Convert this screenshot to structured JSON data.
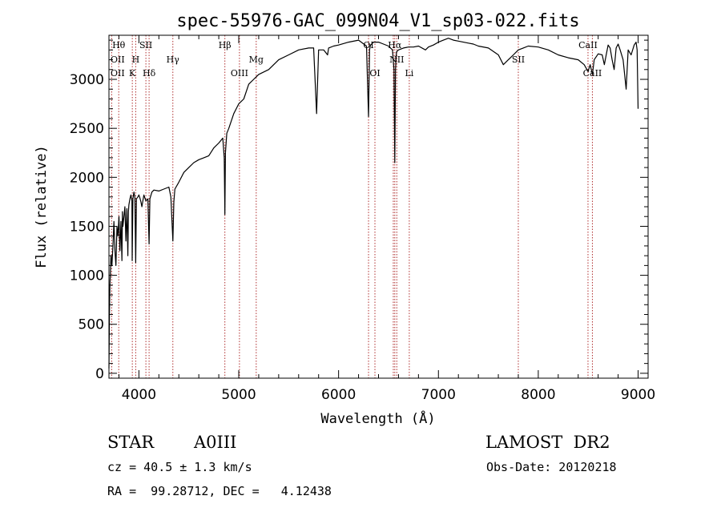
{
  "chart_data": {
    "type": "line",
    "title": "spec-55976-GAC_099N04_V1_sp03-022.fits",
    "xlabel": "Wavelength (Å)",
    "ylabel": "Flux (relative)",
    "xlim": [
      3700,
      9100
    ],
    "ylim": [
      -50,
      3450
    ],
    "xticks": [
      4000,
      5000,
      6000,
      7000,
      8000,
      9000
    ],
    "yticks": [
      0,
      500,
      1000,
      1500,
      2000,
      2500,
      3000
    ],
    "grid": false,
    "series": [
      {
        "x": [
          3700,
          3705,
          3710,
          3720,
          3730,
          3740,
          3750,
          3760,
          3770,
          3780,
          3790,
          3800,
          3810,
          3820,
          3830,
          3835,
          3840,
          3850,
          3860,
          3870,
          3880,
          3889,
          3895,
          3900,
          3910,
          3920,
          3930,
          3933,
          3940,
          3950,
          3960,
          3968,
          3975,
          3990,
          4000,
          4010,
          4020,
          4030,
          4050,
          4070,
          4090,
          4102,
          4110,
          4130,
          4150,
          4200,
          4250,
          4300,
          4320,
          4340,
          4350,
          4360,
          4400,
          4450,
          4500,
          4550,
          4600,
          4650,
          4700,
          4750,
          4800,
          4840,
          4855,
          4861,
          4867,
          4880,
          4900,
          4950,
          5000,
          5050,
          5100,
          5150,
          5200,
          5300,
          5400,
          5500,
          5600,
          5700,
          5750,
          5780,
          5800,
          5850,
          5890,
          5900,
          5950,
          6000,
          6100,
          6200,
          6280,
          6300,
          6310,
          6320,
          6350,
          6400,
          6450,
          6500,
          6540,
          6555,
          6563,
          6570,
          6580,
          6600,
          6650,
          6700,
          6750,
          6800,
          6870,
          6900,
          6950,
          7000,
          7050,
          7100,
          7150,
          7200,
          7250,
          7300,
          7350,
          7400,
          7500,
          7600,
          7650,
          7700,
          7750,
          7800,
          7850,
          7900,
          8000,
          8100,
          8200,
          8300,
          8400,
          8460,
          8498,
          8520,
          8542,
          8560,
          8600,
          8640,
          8662,
          8680,
          8700,
          8720,
          8740,
          8760,
          8780,
          8800,
          8820,
          8850,
          8880,
          8900,
          8930,
          8960,
          8980,
          8990,
          9000
        ],
        "values": [
          50,
          600,
          900,
          1200,
          1100,
          1300,
          1550,
          1250,
          1100,
          1500,
          1400,
          1600,
          1250,
          1550,
          1150,
          1650,
          1500,
          1600,
          1700,
          1350,
          1680,
          1200,
          1650,
          1720,
          1780,
          1820,
          1760,
          1150,
          1780,
          1850,
          1790,
          1130,
          1780,
          1800,
          1820,
          1790,
          1750,
          1700,
          1820,
          1760,
          1780,
          1320,
          1780,
          1850,
          1870,
          1860,
          1880,
          1900,
          1800,
          1350,
          1750,
          1880,
          1950,
          2050,
          2100,
          2150,
          2180,
          2200,
          2220,
          2300,
          2350,
          2400,
          2200,
          1620,
          2250,
          2450,
          2500,
          2650,
          2750,
          2800,
          2950,
          3000,
          3050,
          3100,
          3200,
          3250,
          3300,
          3320,
          3320,
          2650,
          3300,
          3300,
          3250,
          3320,
          3340,
          3350,
          3380,
          3400,
          3340,
          2620,
          3300,
          3350,
          3380,
          3380,
          3360,
          3340,
          3300,
          3100,
          2150,
          3100,
          3280,
          3300,
          3320,
          3330,
          3330,
          3340,
          3300,
          3330,
          3350,
          3380,
          3400,
          3420,
          3400,
          3390,
          3380,
          3370,
          3360,
          3340,
          3320,
          3250,
          3150,
          3200,
          3250,
          3300,
          3320,
          3340,
          3330,
          3300,
          3250,
          3220,
          3200,
          3150,
          3080,
          3150,
          3050,
          3200,
          3260,
          3250,
          3150,
          3250,
          3350,
          3320,
          3200,
          3100,
          3320,
          3360,
          3300,
          3200,
          2900,
          3300,
          3250,
          3350,
          3380,
          3300,
          2700
        ],
        "color": "#000000"
      }
    ],
    "spectral_lines": [
      {
        "label": "Hθ",
        "x": 3798,
        "row": 0
      },
      {
        "label": "OII",
        "x": 3727,
        "row": 1
      },
      {
        "label": "OII",
        "x": 3727,
        "row": 2
      },
      {
        "label": "H",
        "x": 3968,
        "row": 1
      },
      {
        "label": "K",
        "x": 3934,
        "row": 2
      },
      {
        "label": "SII",
        "x": 4070,
        "row": 0
      },
      {
        "label": "Hδ",
        "x": 4102,
        "row": 2
      },
      {
        "label": "Hγ",
        "x": 4340,
        "row": 1
      },
      {
        "label": "Hβ",
        "x": 4861,
        "row": 0
      },
      {
        "label": "OIII",
        "x": 5007,
        "row": 2
      },
      {
        "label": "Mg",
        "x": 5175,
        "row": 1
      },
      {
        "label": "OI",
        "x": 6300,
        "row": 0
      },
      {
        "label": "OI",
        "x": 6364,
        "row": 2
      },
      {
        "label": "Hα",
        "x": 6563,
        "row": 0
      },
      {
        "label": "NII",
        "x": 6583,
        "row": 1
      },
      {
        "label": "Li",
        "x": 6708,
        "row": 2
      },
      {
        "label": "SII",
        "x": 7800,
        "row": 1
      },
      {
        "label": "CaII",
        "x": 8498,
        "row": 0
      },
      {
        "label": "CaII",
        "x": 8542,
        "row": 2
      }
    ],
    "line_positions": [
      3727,
      3798,
      3934,
      3968,
      4070,
      4102,
      4340,
      4861,
      5007,
      5175,
      6300,
      6364,
      6548,
      6563,
      6583,
      6708,
      7800,
      8498,
      8542
    ]
  },
  "info": {
    "object_class": "STAR",
    "subclass": "A0III",
    "survey": "LAMOST  DR2",
    "redshift": "cz = 40.5 ± 1.3 km/s",
    "obs_date": "Obs-Date: 20120218",
    "coords": "RA =  99.28712, DEC =   4.12438"
  }
}
